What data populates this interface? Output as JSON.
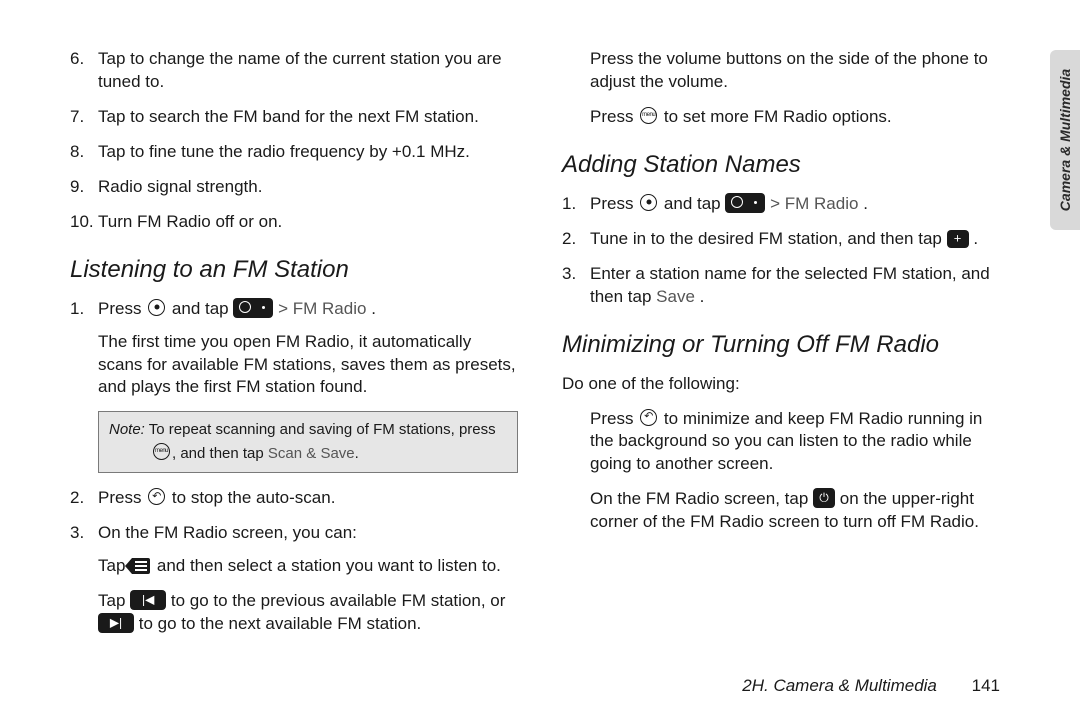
{
  "left": {
    "items": [
      "Tap to change the name of the current station you are tuned to.",
      "Tap to search the FM band for the next FM station.",
      "Tap to fine tune the radio frequency by +0.1 MHz.",
      "Radio signal strength.",
      "Turn FM Radio off or on."
    ],
    "heading": "Listening to an FM Station",
    "step1_a": "Press ",
    "step1_b": " and tap ",
    "step1_c": " > ",
    "step1_d": "FM Radio",
    "step1_e": ".",
    "step1_para": "The first time you open FM Radio, it automatically scans for available FM stations, saves them as presets, and plays the first FM station found.",
    "note_label": "Note:",
    "note_line1": " To repeat scanning and saving of FM stations, press ",
    "note_line2a": ", and then tap ",
    "note_line2b": "Scan & Save",
    "note_line2c": ".",
    "step2_a": "Press ",
    "step2_b": " to stop the auto-scan.",
    "step3": "On the FM Radio screen, you can:",
    "step3_sub1a": "Tap ",
    "step3_sub1b": " and then select a station you want to listen to.",
    "step3_sub2a": "Tap ",
    "step3_sub2b": " to go to the previous available FM station, or ",
    "step3_sub2c": " to go to the next available FM station."
  },
  "right": {
    "cont1": "Press the volume buttons on the side of the phone to adjust the volume.",
    "cont2a": "Press ",
    "cont2b": " to set more FM Radio options.",
    "heading2": "Adding Station Names",
    "add1_a": "Press ",
    "add1_b": " and tap ",
    "add1_c": " > ",
    "add1_d": "FM Radio",
    "add1_e": ".",
    "add2_a": "Tune in to the desired FM station, and then tap ",
    "add2_b": ".",
    "add3_a": "Enter a station name for the selected FM station, and then tap ",
    "add3_b": "Save",
    "add3_c": ".",
    "heading3": "Minimizing or Turning Off FM Radio",
    "do": "Do one of the following:",
    "min1a": "Press ",
    "min1b": " to minimize and keep FM Radio running in the background so you can listen to the radio while going to another screen.",
    "min2a": "On the FM Radio screen, tap ",
    "min2b": " on the upper-right corner of the FM Radio screen to turn off FM Radio."
  },
  "sidetab": "Camera & Multimedia",
  "footer_section": "2H. Camera & Multimedia",
  "footer_page": "141"
}
